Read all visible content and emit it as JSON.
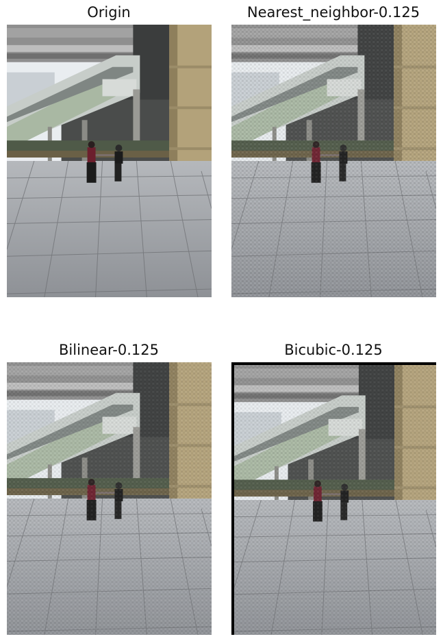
{
  "panels": [
    {
      "title": "Origin"
    },
    {
      "title": "Nearest_neighbor-0.125"
    },
    {
      "title": "Bilinear-0.125"
    },
    {
      "title": "Bicubic-0.125"
    }
  ],
  "colors": {
    "sky": "#e9edf0",
    "overpass": "#8f8f8f",
    "escalator_top": "#c7cdc9",
    "escalator_green": "#a9b8a3",
    "pillar": "#b3a27a",
    "pillar_shadow": "#8e7f5c",
    "floor": "#a3a7ad",
    "floor_line": "#6d6f73",
    "dark_interior": "#3b3d3d",
    "person_red": "#6c1f2d",
    "person_black": "#1b1b1b"
  }
}
